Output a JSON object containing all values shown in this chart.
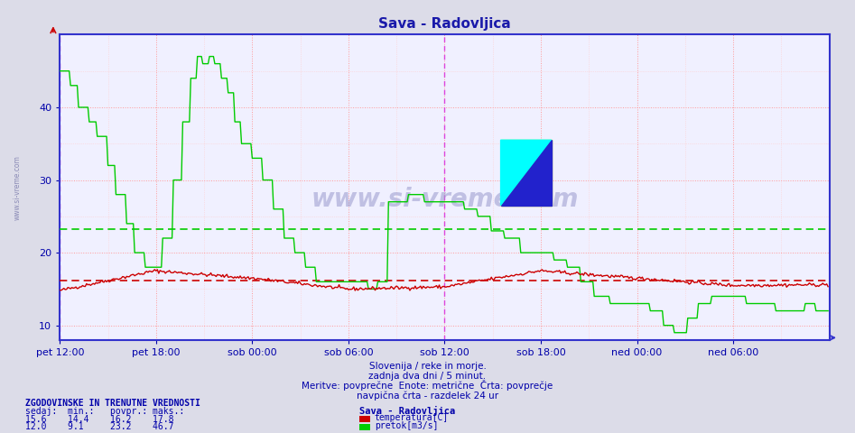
{
  "title": "Sava - Radovljica",
  "title_color": "#1a1aaa",
  "fig_bg_color": "#dcdce8",
  "plot_bg_color": "#f0f0ff",
  "x_tick_labels": [
    "pet 12:00",
    "pet 18:00",
    "sob 00:00",
    "sob 06:00",
    "sob 12:00",
    "sob 18:00",
    "ned 00:00",
    "ned 06:00"
  ],
  "y_ticks": [
    10,
    20,
    30,
    40
  ],
  "ylim": [
    8,
    50
  ],
  "xlim": [
    0,
    576
  ],
  "temp_avg": 16.2,
  "flow_avg": 23.2,
  "temp_color": "#cc0000",
  "flow_color": "#00cc00",
  "border_color": "#3333cc",
  "vline_color": "#dd44dd",
  "subtitle_lines": [
    "Slovenija / reke in morje.",
    "zadnja dva dni / 5 minut.",
    "Meritve: povprečne  Enote: metrične  Črta: povprečje",
    "navpična črta - razdelek 24 ur"
  ],
  "info_header": "ZGODOVINSKE IN TRENUTNE VREDNOSTI",
  "info_col_labels": [
    "sedaj:",
    "min.:",
    "povpr.:",
    "maks.:"
  ],
  "temp_values": [
    15.6,
    14.4,
    16.2,
    17.8
  ],
  "flow_values": [
    12.0,
    9.1,
    23.2,
    46.7
  ],
  "legend_station": "Sava - Radovljica",
  "legend_labels": [
    "temperatura[C]",
    "pretok[m3/s]"
  ],
  "watermark": "www.si-vreme.com",
  "left_watermark": "www.si-vreme.com",
  "grid_major_color": "#ff9999",
  "grid_minor_color": "#ffcccc",
  "grid_horiz_color": "#ffaaaa",
  "text_color": "#0000aa"
}
